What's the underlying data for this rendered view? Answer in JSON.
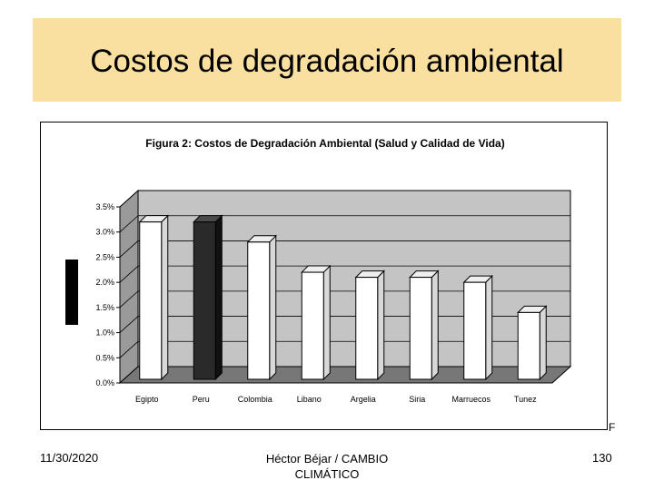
{
  "slide": {
    "title": "Costos de degradación ambiental",
    "footer_date": "11/30/2020",
    "footer_center": "Héctor Béjar / CAMBIO CLIMÁTICO",
    "page_number": "130",
    "corner_mark": "F"
  },
  "colors": {
    "title_band": "#f9e0a0",
    "plot_back": "#c4c4c4",
    "plot_floor": "#777777",
    "bar_default": "#ffffff",
    "bar_highlight": "#2a2a2a"
  },
  "chart_data": {
    "type": "bar",
    "title": "Figura 2: Costos de Degradación Ambiental (Salud y Calidad de Vida)",
    "categories": [
      "Egipto",
      "Peru",
      "Colombia",
      "Libano",
      "Argelia",
      "Siria",
      "Marruecos",
      "Tunez"
    ],
    "values": [
      3.2,
      3.2,
      2.8,
      2.2,
      2.1,
      2.1,
      2.0,
      1.4
    ],
    "highlight_index": 1,
    "yticks": [
      "0.0%",
      "0.5%",
      "1.0%",
      "1.5%",
      "2.0%",
      "2.5%",
      "3.0%",
      "3.5%"
    ],
    "ylim": [
      0,
      3.5
    ],
    "grid": true,
    "legend": "none"
  }
}
